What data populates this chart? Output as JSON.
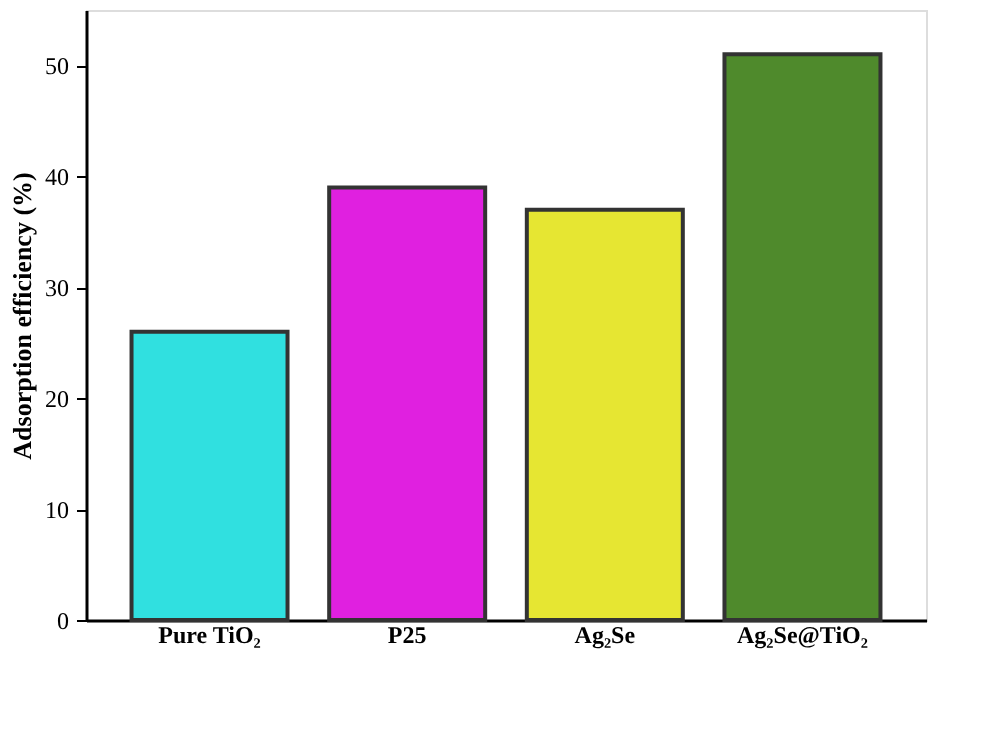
{
  "chart_data": {
    "type": "bar",
    "ylabel": "Adsorption efficiency (%)",
    "categories": [
      "Pure TiO₂",
      "P25",
      "Ag₂Se",
      "Ag₂Se@TiO₂"
    ],
    "values": [
      26,
      39,
      37,
      51
    ],
    "colors": [
      "#30e0e0",
      "#e020e0",
      "#e6e632",
      "#4f8a2c"
    ],
    "ylim": [
      0,
      55
    ],
    "yticks": [
      0,
      10,
      20,
      30,
      40,
      50
    ],
    "grid": false
  }
}
